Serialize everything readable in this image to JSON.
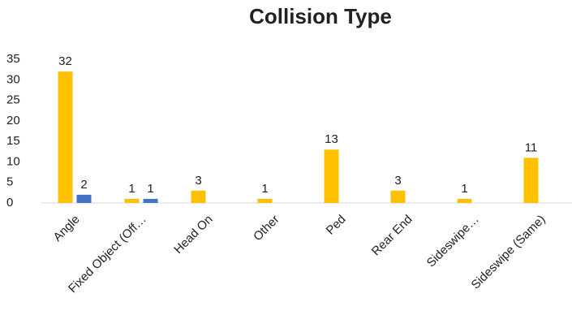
{
  "chart_data": {
    "type": "bar",
    "title": "Collision Type",
    "categories": [
      "Angle",
      "Fixed Object (Off…",
      "Head On",
      "Other",
      "Ped",
      "Rear End",
      "Sideswipe…",
      "Sideswipe (Same)"
    ],
    "series": [
      {
        "color": "#ffc000",
        "values": [
          32,
          1,
          3,
          1,
          13,
          3,
          1,
          11
        ]
      },
      {
        "color": "#4472c4",
        "values": [
          2,
          1,
          null,
          null,
          null,
          null,
          null,
          null
        ]
      }
    ],
    "ylim": [
      0,
      35
    ],
    "yticks": [
      0,
      5,
      10,
      15,
      20,
      25,
      30,
      35
    ],
    "grid": false
  }
}
